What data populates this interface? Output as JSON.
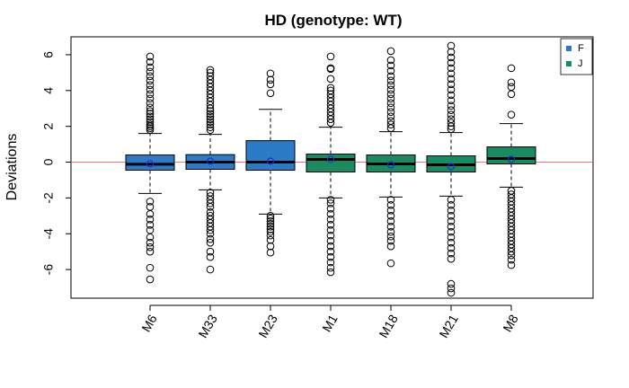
{
  "chart_data": {
    "type": "boxplot",
    "title": "HD (genotype: WT)",
    "xlabel": "",
    "ylabel": "Deviations",
    "ylim": [
      -7.6,
      7.0
    ],
    "yticks": [
      -6,
      -4,
      -2,
      0,
      2,
      4,
      6
    ],
    "reference_line": {
      "y": 0,
      "color": "#e0484f"
    },
    "colors": {
      "F": "#2c7bc6",
      "J": "#1a8a5f"
    },
    "legend": {
      "position": "top-right",
      "entries": [
        {
          "label": "F",
          "color": "#2c7bc6"
        },
        {
          "label": "J",
          "color": "#1a8a5f"
        }
      ]
    },
    "categories": [
      "M6",
      "M33",
      "M23",
      "M1",
      "M18",
      "M21",
      "M8"
    ],
    "groups": [
      "F",
      "F",
      "F",
      "J",
      "J",
      "J",
      "J"
    ],
    "boxes": [
      {
        "name": "M6",
        "group": "F",
        "q1": -0.45,
        "median": -0.12,
        "q3": 0.4,
        "whisker_low": -1.75,
        "whisker_high": 1.6,
        "mean": -0.1,
        "outliers": [
          5.9,
          5.6,
          5.3,
          5.05,
          4.8,
          4.55,
          4.3,
          4.05,
          3.8,
          3.55,
          3.3,
          3.05,
          2.85,
          2.7,
          2.55,
          2.4,
          2.25,
          2.1,
          2.0,
          1.9,
          1.8,
          -2.2,
          -2.5,
          -2.9,
          -3.2,
          -3.5,
          -3.8,
          -4.2,
          -4.5,
          -4.75,
          -5.0,
          -5.9,
          -6.55
        ]
      },
      {
        "name": "M33",
        "group": "F",
        "q1": -0.4,
        "median": 0.0,
        "q3": 0.42,
        "whisker_low": -1.55,
        "whisker_high": 1.55,
        "mean": 0.05,
        "outliers": [
          5.15,
          5.0,
          4.8,
          4.6,
          4.4,
          4.2,
          4.0,
          3.8,
          3.6,
          3.4,
          3.2,
          3.0,
          2.85,
          2.7,
          2.55,
          2.4,
          2.25,
          2.1,
          1.95,
          1.8,
          -1.7,
          -1.9,
          -2.1,
          -2.3,
          -2.5,
          -2.8,
          -3.0,
          -3.2,
          -3.4,
          -3.6,
          -3.8,
          -4.0,
          -4.3,
          -4.5,
          -5.0,
          -5.3,
          -6.0
        ]
      },
      {
        "name": "M23",
        "group": "F",
        "q1": -0.45,
        "median": 0.0,
        "q3": 1.2,
        "whisker_low": -2.9,
        "whisker_high": 2.95,
        "mean": 0.05,
        "outliers": [
          4.95,
          4.6,
          4.35,
          3.85,
          -3.0,
          -3.15,
          -3.3,
          -3.45,
          -3.6,
          -3.75,
          -3.9,
          -4.1,
          -4.35,
          -4.7,
          -5.05
        ]
      },
      {
        "name": "M1",
        "group": "J",
        "q1": -0.55,
        "median": 0.15,
        "q3": 0.45,
        "whisker_low": -2.0,
        "whisker_high": 1.95,
        "mean": 0.15,
        "outliers": [
          5.9,
          5.25,
          5.2,
          4.65,
          4.15,
          4.0,
          3.8,
          3.6,
          3.4,
          3.2,
          3.0,
          2.8,
          2.6,
          2.4,
          2.2,
          -2.1,
          -2.3,
          -2.6,
          -2.9,
          -3.2,
          -3.5,
          -3.8,
          -4.1,
          -4.4,
          -4.7,
          -5.0,
          -5.3,
          -5.6,
          -5.9,
          -6.15
        ]
      },
      {
        "name": "M18",
        "group": "J",
        "q1": -0.55,
        "median": -0.1,
        "q3": 0.4,
        "whisker_low": -1.95,
        "whisker_high": 1.7,
        "mean": -0.15,
        "outliers": [
          6.2,
          5.7,
          5.4,
          5.1,
          4.8,
          4.55,
          4.3,
          4.05,
          3.8,
          3.55,
          3.3,
          3.05,
          2.8,
          2.55,
          2.3,
          2.1,
          1.9,
          -2.1,
          -2.4,
          -2.7,
          -3.0,
          -3.3,
          -3.6,
          -3.9,
          -4.15,
          -4.4,
          -4.7,
          -5.65
        ]
      },
      {
        "name": "M21",
        "group": "J",
        "q1": -0.55,
        "median": -0.15,
        "q3": 0.35,
        "whisker_low": -1.9,
        "whisker_high": 1.65,
        "mean": -0.25,
        "outliers": [
          6.5,
          6.15,
          5.85,
          5.55,
          5.25,
          4.95,
          4.65,
          4.35,
          4.05,
          3.75,
          3.45,
          3.15,
          2.9,
          2.65,
          2.4,
          2.2,
          2.0,
          1.85,
          -2.1,
          -2.4,
          -2.7,
          -3.0,
          -3.3,
          -3.6,
          -3.9,
          -4.2,
          -4.5,
          -4.8,
          -5.1,
          -5.4,
          -6.8,
          -7.05,
          -7.3
        ]
      },
      {
        "name": "M8",
        "group": "J",
        "q1": -0.1,
        "median": 0.2,
        "q3": 0.85,
        "whisker_low": -1.4,
        "whisker_high": 2.15,
        "mean": 0.15,
        "outliers": [
          5.25,
          4.45,
          4.2,
          3.8,
          2.65,
          -1.6,
          -1.8,
          -2.0,
          -2.2,
          -2.4,
          -2.6,
          -2.8,
          -3.0,
          -3.2,
          -3.4,
          -3.6,
          -3.8,
          -4.0,
          -4.2,
          -4.4,
          -4.6,
          -4.8,
          -5.0,
          -5.2,
          -5.45,
          -5.75
        ]
      }
    ]
  }
}
